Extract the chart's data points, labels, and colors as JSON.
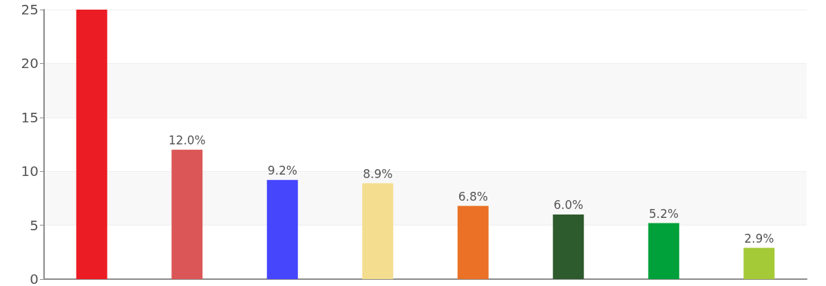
{
  "chart_data": {
    "type": "bar",
    "categories": [
      null,
      null,
      null,
      null,
      null,
      null,
      null,
      null
    ],
    "values": [
      25,
      12.0,
      9.2,
      8.9,
      6.8,
      6.0,
      5.2,
      2.9
    ],
    "colors": [
      "#ec1c24",
      "#db5757",
      "#4646fd",
      "#f4dd8f",
      "#ea7125",
      "#2e5b2e",
      "#00a13a",
      "#a5ca37"
    ],
    "value_labels": [
      null,
      "12.0%",
      "9.2%",
      "8.9%",
      "6.8%",
      "6.0%",
      "5.2%",
      "2.9%"
    ],
    "ylim": [
      0,
      25
    ],
    "yticks": [
      0,
      5,
      10,
      15,
      20,
      25
    ],
    "grid": "y"
  }
}
